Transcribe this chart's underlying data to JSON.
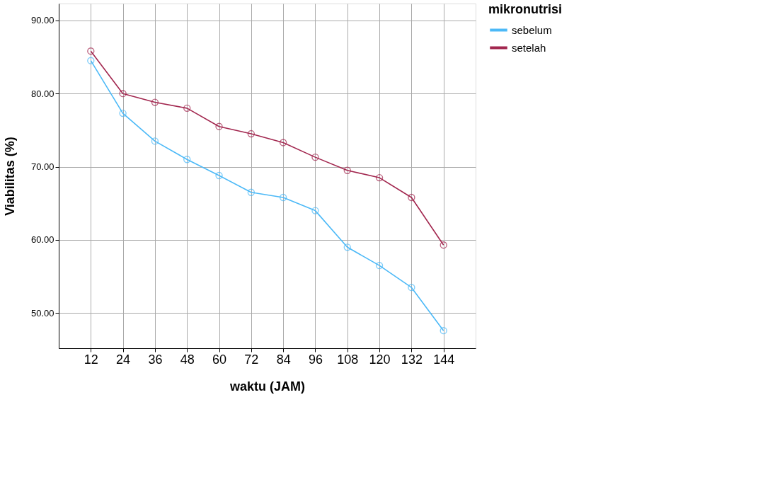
{
  "chart_data": {
    "type": "line",
    "xlabel": "waktu (JAM)",
    "ylabel": "Viabilitas (%)",
    "legend_title": "mikronutrisi",
    "categories": [
      "12",
      "24",
      "36",
      "48",
      "60",
      "72",
      "84",
      "96",
      "108",
      "120",
      "132",
      "144"
    ],
    "series": [
      {
        "name": "sebelum",
        "color": "#4cb9f7",
        "values": [
          84.5,
          77.3,
          73.5,
          71.0,
          68.8,
          66.5,
          65.8,
          64.0,
          59.0,
          56.5,
          53.5,
          47.6
        ]
      },
      {
        "name": "setelah",
        "color": "#a2274f",
        "values": [
          85.8,
          80.0,
          78.8,
          78.0,
          75.5,
          74.5,
          73.3,
          71.3,
          69.5,
          68.5,
          65.8,
          59.3
        ]
      }
    ],
    "ylim": [
      45.2,
      92.3
    ],
    "yticks": [
      {
        "value": 50,
        "label": "50.00"
      },
      {
        "value": 60,
        "label": "60.00"
      },
      {
        "value": 70,
        "label": "70.00"
      },
      {
        "value": 80,
        "label": "80.00"
      },
      {
        "value": 90,
        "label": "90.00"
      }
    ],
    "grid": true,
    "legend": "top right",
    "marker": "circle",
    "line_style": "solid"
  }
}
